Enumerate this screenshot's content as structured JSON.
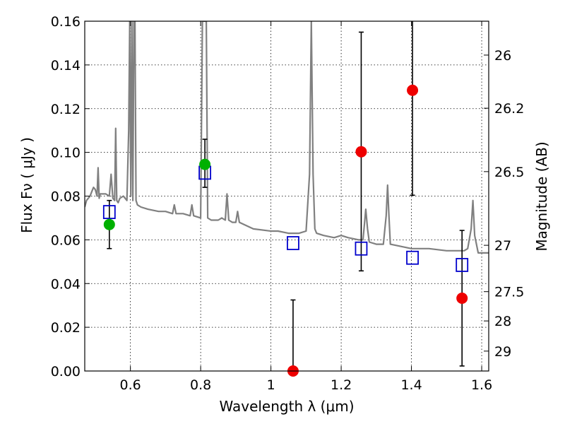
{
  "chart_data": {
    "type": "scatter",
    "xlabel": "Wavelength  λ (μm)",
    "ylabel": "Flux  Fν  ( μJy )",
    "ylabel_right": "Magnitude (AB)",
    "xlim": [
      0.47,
      1.62
    ],
    "ylim": [
      0.0,
      0.16
    ],
    "grid": true,
    "x_ticks": [
      {
        "value": 0.6,
        "label": "0.6"
      },
      {
        "value": 0.8,
        "label": "0.8"
      },
      {
        "value": 1.0,
        "label": "1"
      },
      {
        "value": 1.2,
        "label": "1.2"
      },
      {
        "value": 1.4,
        "label": "1.4"
      },
      {
        "value": 1.6,
        "label": "1.6"
      }
    ],
    "y_ticks": [
      {
        "value": 0.0,
        "label": "0.00"
      },
      {
        "value": 0.02,
        "label": "0.02"
      },
      {
        "value": 0.04,
        "label": "0.04"
      },
      {
        "value": 0.06,
        "label": "0.06"
      },
      {
        "value": 0.08,
        "label": "0.08"
      },
      {
        "value": 0.1,
        "label": "0.10"
      },
      {
        "value": 0.12,
        "label": "0.12"
      },
      {
        "value": 0.14,
        "label": "0.14"
      },
      {
        "value": 0.16,
        "label": "0.16"
      }
    ],
    "right_ticks": [
      {
        "flux": 0.1445,
        "label": "26"
      },
      {
        "flux": 0.1202,
        "label": "26.2"
      },
      {
        "flux": 0.0912,
        "label": "26.5"
      },
      {
        "flux": 0.0575,
        "label": "27"
      },
      {
        "flux": 0.0363,
        "label": "27.5"
      },
      {
        "flux": 0.0229,
        "label": "28"
      },
      {
        "flux": 0.0091,
        "label": "29"
      }
    ],
    "series": [
      {
        "style": "model-spectrum-line",
        "color": "#808080",
        "x": [
          0.47,
          0.475,
          0.48,
          0.485,
          0.49,
          0.495,
          0.5,
          0.505,
          0.508,
          0.511,
          0.514,
          0.52,
          0.53,
          0.54,
          0.545,
          0.55,
          0.555,
          0.558,
          0.561,
          0.565,
          0.57,
          0.58,
          0.59,
          0.595,
          0.598,
          0.601,
          0.604,
          0.607,
          0.61,
          0.613,
          0.616,
          0.62,
          0.63,
          0.65,
          0.68,
          0.7,
          0.72,
          0.725,
          0.73,
          0.75,
          0.77,
          0.775,
          0.78,
          0.8,
          0.805,
          0.808,
          0.812,
          0.816,
          0.82,
          0.83,
          0.84,
          0.85,
          0.86,
          0.87,
          0.875,
          0.88,
          0.89,
          0.9,
          0.905,
          0.91,
          0.95,
          1.0,
          1.02,
          1.05,
          1.08,
          1.1,
          1.11,
          1.115,
          1.12,
          1.125,
          1.13,
          1.15,
          1.18,
          1.2,
          1.22,
          1.25,
          1.262,
          1.265,
          1.27,
          1.275,
          1.28,
          1.3,
          1.32,
          1.328,
          1.332,
          1.336,
          1.34,
          1.37,
          1.4,
          1.45,
          1.5,
          1.55,
          1.56,
          1.57,
          1.575,
          1.58,
          1.59,
          1.6,
          1.62
        ],
        "y": [
          0.075,
          0.078,
          0.079,
          0.08,
          0.082,
          0.084,
          0.083,
          0.08,
          0.093,
          0.079,
          0.081,
          0.081,
          0.081,
          0.08,
          0.09,
          0.079,
          0.078,
          0.111,
          0.078,
          0.077,
          0.079,
          0.08,
          0.078,
          0.11,
          0.16,
          0.08,
          0.16,
          0.078,
          0.16,
          0.16,
          0.078,
          0.076,
          0.075,
          0.074,
          0.073,
          0.073,
          0.072,
          0.076,
          0.072,
          0.072,
          0.071,
          0.076,
          0.071,
          0.07,
          0.16,
          0.16,
          0.16,
          0.16,
          0.07,
          0.069,
          0.069,
          0.069,
          0.07,
          0.069,
          0.081,
          0.069,
          0.068,
          0.068,
          0.073,
          0.068,
          0.065,
          0.064,
          0.064,
          0.063,
          0.063,
          0.064,
          0.09,
          0.16,
          0.09,
          0.065,
          0.063,
          0.062,
          0.061,
          0.062,
          0.061,
          0.06,
          0.06,
          0.065,
          0.074,
          0.065,
          0.059,
          0.058,
          0.058,
          0.071,
          0.085,
          0.071,
          0.058,
          0.057,
          0.056,
          0.056,
          0.055,
          0.055,
          0.056,
          0.065,
          0.078,
          0.062,
          0.054,
          0.054,
          0.054
        ]
      },
      {
        "style": "open-square-blue",
        "color": "#0000cc",
        "x": [
          0.54,
          0.812,
          1.063,
          1.257,
          1.403,
          1.544
        ],
        "y": [
          0.0727,
          0.0907,
          0.0585,
          0.056,
          0.0518,
          0.0485
        ]
      },
      {
        "style": "filled-circle-green",
        "color": "#00b000",
        "x": [
          0.54,
          0.812
        ],
        "y": [
          0.067,
          0.0945
        ]
      },
      {
        "style": "filled-circle-red-with-errorbar",
        "color": "#ee0000",
        "x": [
          1.063,
          1.257,
          1.403,
          1.544
        ],
        "y": [
          0.0,
          0.1003,
          0.1284,
          0.0333
        ],
        "yerr_low": [
          0.0,
          0.0545,
          0.048,
          0.031
        ],
        "yerr_high": [
          0.0325,
          0.0547,
          0.04,
          0.031
        ]
      },
      {
        "style": "errorbar-black",
        "color": "#000000",
        "x": [
          0.54,
          0.812
        ],
        "y": [
          0.067,
          0.0945
        ],
        "yerr_low": [
          0.011,
          0.0105
        ],
        "yerr_high": [
          0.011,
          0.0115
        ]
      }
    ]
  }
}
